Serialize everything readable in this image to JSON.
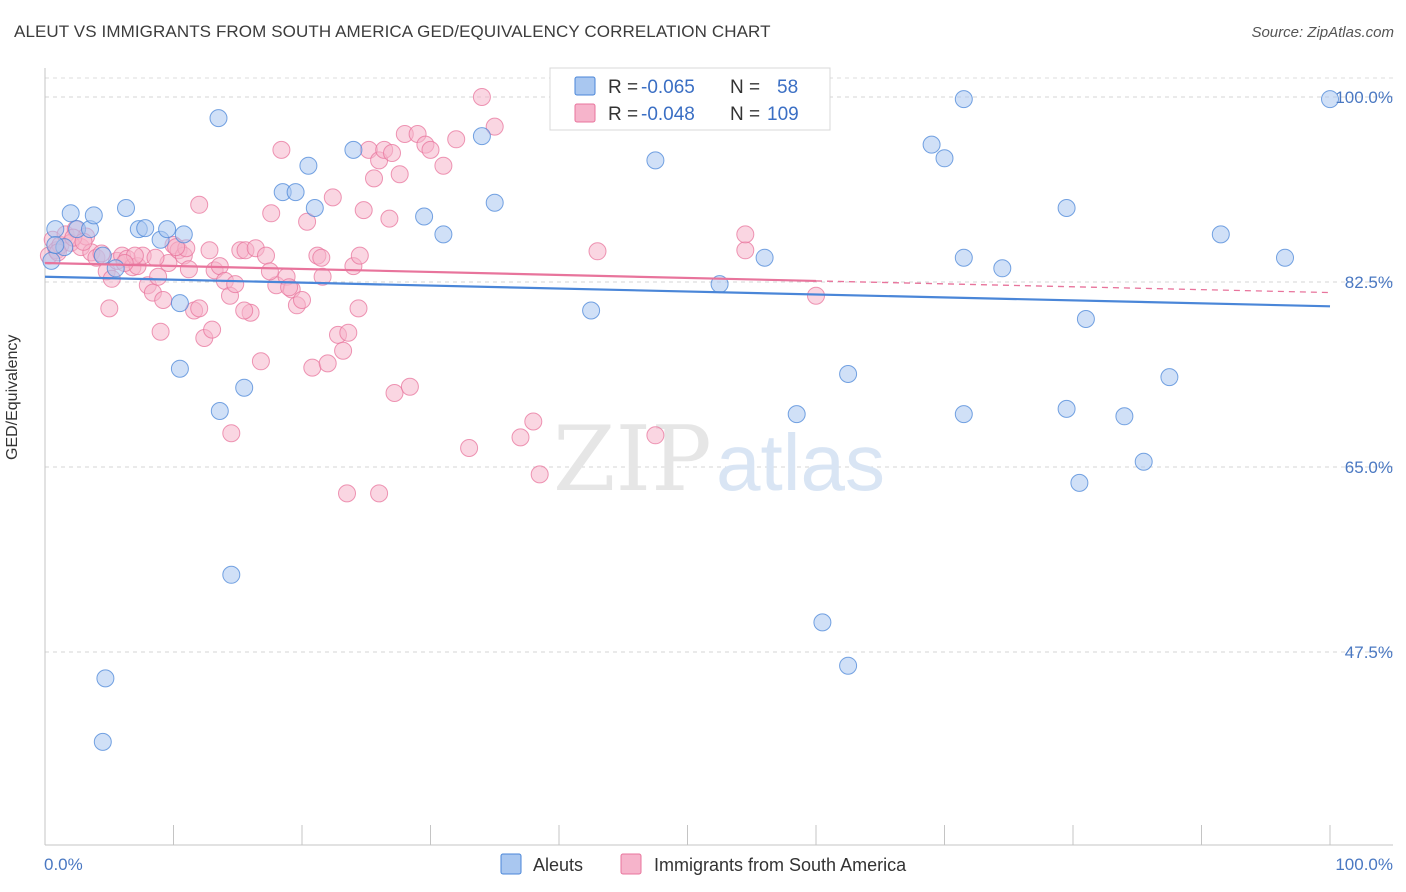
{
  "header": {
    "title": "ALEUT VS IMMIGRANTS FROM SOUTH AMERICA GED/EQUIVALENCY CORRELATION CHART",
    "source": "Source: ZipAtlas.com"
  },
  "watermark": {
    "part1": "ZIP",
    "part2": "atlas"
  },
  "colors": {
    "blue": "#4a86d8",
    "blue_fill": "#a9c7f0",
    "pink": "#e8749c",
    "pink_fill": "#f6b4cb",
    "tick_text": "#4a78c2",
    "grid": "#d0d0d0"
  },
  "legend_stats": {
    "aleuts": {
      "r_label": "R = ",
      "r_value": "-0.065",
      "n_label": "N = ",
      "n_value": "58"
    },
    "immigrants": {
      "r_label": "R = ",
      "r_value": "-0.048",
      "n_label": "N = ",
      "n_value": "109"
    }
  },
  "chart_data": {
    "type": "scatter",
    "title": "ALEUT VS IMMIGRANTS FROM SOUTH AMERICA GED/EQUIVALENCY CORRELATION CHART",
    "xlabel": "",
    "ylabel": "GED/Equivalency",
    "xlim": [
      0,
      100
    ],
    "ylim": [
      33,
      102
    ],
    "x_tick_labels": [
      "0.0%",
      "100.0%"
    ],
    "y_ticks": [
      47.5,
      65.0,
      82.5,
      100.0
    ],
    "y_tick_labels": [
      "47.5%",
      "65.0%",
      "82.5%",
      "100.0%"
    ],
    "grid": true,
    "legend_position": "top-center",
    "series": [
      {
        "name": "Aleuts",
        "color": "#4a86d8",
        "trend": {
          "x": [
            0,
            100
          ],
          "y": [
            83.0,
            80.2
          ]
        },
        "points": [
          [
            0.5,
            84.5
          ],
          [
            0.8,
            87.5
          ],
          [
            1.5,
            85.8
          ],
          [
            2.0,
            89.0
          ],
          [
            2.5,
            87.5
          ],
          [
            3.5,
            87.5
          ],
          [
            3.8,
            88.8
          ],
          [
            4.5,
            85.0
          ],
          [
            5.5,
            83.8
          ],
          [
            6.3,
            89.5
          ],
          [
            7.3,
            87.5
          ],
          [
            7.8,
            87.6
          ],
          [
            9.0,
            86.5
          ],
          [
            9.5,
            87.5
          ],
          [
            10.5,
            80.5
          ],
          [
            10.8,
            87.0
          ],
          [
            10.5,
            74.3
          ],
          [
            13.5,
            98.0
          ],
          [
            13.6,
            70.3
          ],
          [
            14.5,
            54.8
          ],
          [
            15.5,
            72.5
          ],
          [
            18.5,
            91.0
          ],
          [
            19.5,
            91.0
          ],
          [
            20.5,
            93.5
          ],
          [
            21.0,
            89.5
          ],
          [
            24.0,
            95.0
          ],
          [
            29.5,
            88.7
          ],
          [
            31.0,
            87.0
          ],
          [
            34.0,
            96.3
          ],
          [
            35.0,
            90.0
          ],
          [
            42.5,
            79.8
          ],
          [
            47.5,
            94.0
          ],
          [
            52.5,
            82.3
          ],
          [
            56.5,
            99.8
          ],
          [
            56.0,
            84.8
          ],
          [
            58.5,
            70.0
          ],
          [
            60.5,
            50.3
          ],
          [
            62.5,
            46.2
          ],
          [
            62.5,
            73.8
          ],
          [
            69.0,
            95.5
          ],
          [
            70.0,
            94.2
          ],
          [
            71.5,
            99.8
          ],
          [
            71.5,
            84.8
          ],
          [
            71.5,
            70.0
          ],
          [
            74.5,
            83.8
          ],
          [
            79.5,
            89.5
          ],
          [
            79.5,
            70.5
          ],
          [
            80.5,
            63.5
          ],
          [
            81.0,
            79.0
          ],
          [
            84.0,
            69.8
          ],
          [
            85.5,
            65.5
          ],
          [
            87.5,
            73.5
          ],
          [
            91.5,
            87.0
          ],
          [
            96.5,
            84.8
          ],
          [
            100.0,
            99.8
          ],
          [
            4.7,
            45.0
          ],
          [
            4.5,
            39.0
          ],
          [
            0.8,
            86.0
          ]
        ]
      },
      {
        "name": "Immigrants from South America",
        "color": "#e8749c",
        "trend": {
          "x": [
            0,
            60
          ],
          "y": [
            84.3,
            82.6
          ]
        },
        "trend_dashed": {
          "x": [
            60,
            100
          ],
          "y": [
            82.6,
            81.5
          ]
        },
        "points": [
          [
            0.3,
            85.0
          ],
          [
            0.6,
            86.5
          ],
          [
            0.9,
            85.5
          ],
          [
            1.2,
            86.0
          ],
          [
            1.6,
            87.0
          ],
          [
            2.0,
            86.2
          ],
          [
            2.4,
            87.5
          ],
          [
            2.8,
            85.8
          ],
          [
            3.2,
            86.8
          ],
          [
            3.6,
            85.3
          ],
          [
            4.0,
            84.8
          ],
          [
            4.4,
            85.2
          ],
          [
            4.8,
            83.5
          ],
          [
            5.2,
            82.8
          ],
          [
            5.6,
            84.5
          ],
          [
            6.0,
            85.0
          ],
          [
            6.4,
            84.7
          ],
          [
            6.8,
            83.9
          ],
          [
            7.2,
            84.0
          ],
          [
            7.6,
            85.0
          ],
          [
            8.0,
            82.2
          ],
          [
            8.4,
            81.5
          ],
          [
            8.8,
            83.0
          ],
          [
            9.2,
            80.8
          ],
          [
            9.6,
            84.3
          ],
          [
            10.0,
            86.0
          ],
          [
            10.4,
            85.5
          ],
          [
            10.8,
            85.0
          ],
          [
            11.2,
            83.7
          ],
          [
            11.6,
            79.8
          ],
          [
            12.0,
            80.0
          ],
          [
            12.4,
            77.2
          ],
          [
            12.8,
            85.5
          ],
          [
            13.2,
            83.6
          ],
          [
            13.6,
            84.0
          ],
          [
            14.0,
            82.6
          ],
          [
            14.4,
            81.2
          ],
          [
            14.8,
            82.3
          ],
          [
            15.2,
            85.5
          ],
          [
            15.6,
            85.5
          ],
          [
            16.0,
            79.6
          ],
          [
            16.4,
            85.7
          ],
          [
            16.8,
            75.0
          ],
          [
            17.2,
            85.0
          ],
          [
            17.6,
            89.0
          ],
          [
            18.0,
            82.2
          ],
          [
            18.4,
            95.0
          ],
          [
            18.8,
            83.0
          ],
          [
            19.2,
            81.8
          ],
          [
            19.6,
            80.3
          ],
          [
            20.0,
            80.8
          ],
          [
            20.4,
            88.2
          ],
          [
            20.8,
            74.4
          ],
          [
            21.2,
            85.0
          ],
          [
            21.6,
            83.0
          ],
          [
            22.0,
            74.8
          ],
          [
            22.4,
            90.5
          ],
          [
            22.8,
            77.5
          ],
          [
            23.2,
            76.0
          ],
          [
            23.6,
            77.7
          ],
          [
            24.0,
            84.0
          ],
          [
            24.4,
            80.0
          ],
          [
            24.8,
            89.3
          ],
          [
            25.2,
            95.0
          ],
          [
            25.6,
            92.3
          ],
          [
            26.0,
            94.0
          ],
          [
            26.4,
            95.0
          ],
          [
            26.8,
            88.5
          ],
          [
            27.2,
            72.0
          ],
          [
            27.6,
            92.7
          ],
          [
            28.0,
            96.5
          ],
          [
            28.4,
            72.6
          ],
          [
            29.0,
            96.5
          ],
          [
            29.6,
            95.5
          ],
          [
            30.0,
            95.0
          ],
          [
            31.0,
            93.5
          ],
          [
            32.0,
            96.0
          ],
          [
            33.0,
            66.8
          ],
          [
            35.0,
            97.2
          ],
          [
            37.0,
            67.8
          ],
          [
            38.0,
            69.3
          ],
          [
            38.5,
            64.3
          ],
          [
            43.0,
            85.4
          ],
          [
            47.5,
            68.0
          ],
          [
            54.5,
            85.5
          ],
          [
            54.5,
            87.0
          ],
          [
            60.0,
            81.2
          ],
          [
            23.5,
            62.5
          ],
          [
            26.0,
            62.5
          ],
          [
            34.0,
            100.0
          ],
          [
            9.0,
            77.8
          ],
          [
            12.0,
            89.8
          ],
          [
            14.5,
            68.2
          ],
          [
            5.0,
            80.0
          ],
          [
            7.0,
            85.0
          ],
          [
            11.0,
            85.7
          ],
          [
            13.0,
            78.0
          ],
          [
            15.5,
            79.8
          ],
          [
            17.5,
            83.5
          ],
          [
            19.0,
            82.0
          ],
          [
            21.5,
            84.8
          ],
          [
            24.5,
            85.0
          ],
          [
            2.2,
            86.7
          ],
          [
            3.0,
            86.3
          ],
          [
            1.0,
            85.3
          ],
          [
            6.2,
            84.3
          ],
          [
            8.6,
            84.8
          ],
          [
            10.2,
            85.8
          ],
          [
            27.0,
            94.7
          ]
        ]
      }
    ]
  },
  "bottom_legend": {
    "aleuts": "Aleuts",
    "immigrants": "Immigrants from South America"
  }
}
